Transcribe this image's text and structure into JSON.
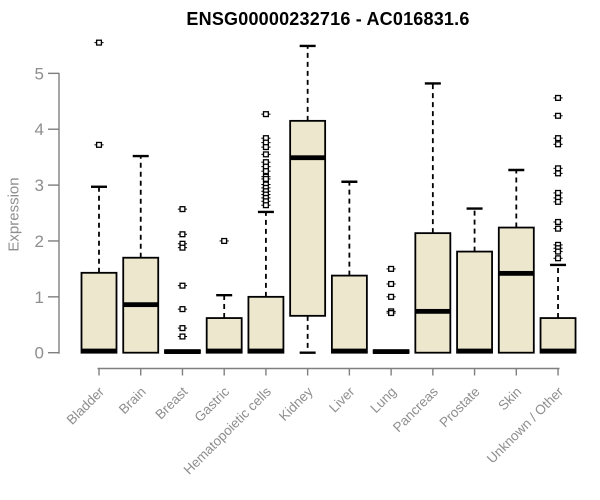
{
  "chart_data": {
    "type": "boxplot",
    "title": "ENSG00000232716 - AC016831.6",
    "ylabel": "Expression",
    "xlabel": "",
    "ylim": [
      0,
      5
    ],
    "yticks": [
      0,
      1,
      2,
      3,
      4,
      5
    ],
    "grid": false,
    "legend": "none",
    "x_tick_rotation": 45,
    "categories": [
      "Bladder",
      "Brain",
      "Breast",
      "Gastric",
      "Hematopoietic cells",
      "Kidney",
      "Liver",
      "Lung",
      "Pancreas",
      "Prostate",
      "Skin",
      "Unknown / Other"
    ],
    "boxes": [
      {
        "category": "Bladder",
        "q1": 0,
        "median": 0.03,
        "q3": 1.43,
        "whisker_low": 0,
        "whisker_high": 2.97,
        "outliers": [
          5.55,
          3.72
        ]
      },
      {
        "category": "Brain",
        "q1": 0,
        "median": 0.86,
        "q3": 1.7,
        "whisker_low": 0,
        "whisker_high": 3.52,
        "outliers": []
      },
      {
        "category": "Breast",
        "q1": 0,
        "median": 0.02,
        "q3": 0.04,
        "whisker_low": 0,
        "whisker_high": 0.04,
        "outliers": [
          2.57,
          2.12,
          1.95,
          1.88,
          1.2,
          0.78,
          0.44,
          0.29
        ]
      },
      {
        "category": "Gastric",
        "q1": 0,
        "median": 0.03,
        "q3": 0.62,
        "whisker_low": 0,
        "whisker_high": 1.03,
        "outliers": [
          2.0
        ]
      },
      {
        "category": "Hematopoietic cells",
        "q1": 0,
        "median": 0.03,
        "q3": 1.0,
        "whisker_low": 0,
        "whisker_high": 2.52,
        "outliers": [
          4.27,
          3.84,
          3.76,
          3.68,
          3.55,
          3.41,
          3.33,
          3.25,
          3.15,
          3.11,
          3.01,
          2.95,
          2.89,
          2.83,
          2.77,
          2.71,
          2.64
        ]
      },
      {
        "category": "Kidney",
        "q1": 0.66,
        "median": 3.49,
        "q3": 4.15,
        "whisker_low": 0,
        "whisker_high": 5.49,
        "outliers": []
      },
      {
        "category": "Liver",
        "q1": 0,
        "median": 0.03,
        "q3": 1.38,
        "whisker_low": 0,
        "whisker_high": 3.06,
        "outliers": []
      },
      {
        "category": "Lung",
        "q1": 0,
        "median": 0.02,
        "q3": 0.04,
        "whisker_low": 0,
        "whisker_high": 0.04,
        "outliers": [
          1.5,
          1.23,
          1.0,
          0.74,
          0.71
        ]
      },
      {
        "category": "Pancreas",
        "q1": 0,
        "median": 0.74,
        "q3": 2.14,
        "whisker_low": 0,
        "whisker_high": 4.82,
        "outliers": []
      },
      {
        "category": "Prostate",
        "q1": 0,
        "median": 0.03,
        "q3": 1.81,
        "whisker_low": 0,
        "whisker_high": 2.58,
        "outliers": []
      },
      {
        "category": "Skin",
        "q1": 0,
        "median": 1.42,
        "q3": 2.24,
        "whisker_low": 0,
        "whisker_high": 3.27,
        "outliers": []
      },
      {
        "category": "Unknown / Other",
        "q1": 0,
        "median": 0.03,
        "q3": 0.62,
        "whisker_low": 0,
        "whisker_high": 1.57,
        "outliers": [
          4.56,
          4.24,
          3.84,
          3.73,
          3.3,
          3.21,
          2.86,
          2.77,
          2.7,
          2.34,
          2.22,
          1.93,
          1.87,
          1.81,
          1.69
        ]
      }
    ],
    "colors": {
      "box_fill": "#EDE7CD",
      "box_border": "#000000",
      "median": "#000000",
      "whisker": "#000000",
      "axis": "#7f7f7f",
      "tick_label": "#8e8e8e",
      "title": "#000000",
      "background": "#ffffff"
    }
  }
}
